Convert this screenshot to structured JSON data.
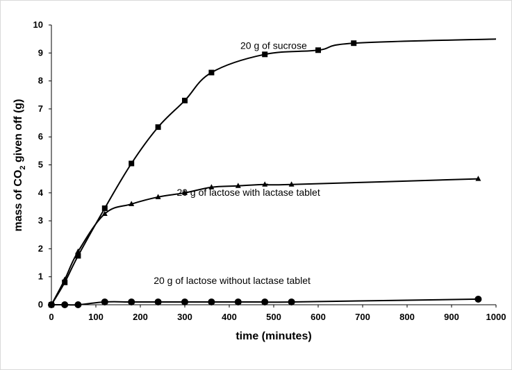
{
  "chart_data": {
    "type": "line",
    "title": "",
    "xlabel": "time (minutes)",
    "ylabel_parts": [
      "mass of CO",
      "2",
      " given off (g)"
    ],
    "xlim": [
      0,
      1000
    ],
    "ylim": [
      0,
      10
    ],
    "x_ticks": [
      0,
      100,
      200,
      300,
      400,
      500,
      600,
      700,
      800,
      900,
      1000
    ],
    "y_ticks": [
      0,
      1,
      2,
      3,
      4,
      5,
      6,
      7,
      8,
      9,
      10
    ],
    "grid": false,
    "legend": "none",
    "series": [
      {
        "name": "20 g of sucrose",
        "marker": "square",
        "label_at": [
          425,
          9.15
        ],
        "x": [
          0,
          30,
          60,
          120,
          180,
          240,
          300,
          360,
          480,
          600,
          680
        ],
        "y": [
          0,
          0.8,
          1.75,
          3.45,
          5.05,
          6.35,
          7.3,
          8.3,
          8.95,
          9.1,
          9.35
        ],
        "curve_x": [
          0,
          30,
          60,
          120,
          180,
          240,
          300,
          360,
          480,
          600,
          680,
          1000
        ],
        "curve_y": [
          0,
          0.8,
          1.75,
          3.45,
          5.05,
          6.35,
          7.3,
          8.3,
          8.95,
          9.1,
          9.35,
          9.5
        ]
      },
      {
        "name": "20 g of lactose with lactase tablet",
        "marker": "triangle",
        "label_at": [
          282,
          3.9
        ],
        "x": [
          0,
          30,
          60,
          120,
          180,
          240,
          300,
          360,
          420,
          480,
          540,
          960
        ],
        "y": [
          0,
          0.9,
          1.9,
          3.25,
          3.6,
          3.85,
          4.0,
          4.2,
          4.25,
          4.3,
          4.3,
          4.5
        ]
      },
      {
        "name": "20 g of lactose without lactase tablet",
        "marker": "circle",
        "label_at": [
          230,
          0.75
        ],
        "x": [
          0,
          30,
          60,
          120,
          180,
          240,
          300,
          360,
          420,
          480,
          540,
          960
        ],
        "y": [
          0,
          0,
          0,
          0.1,
          0.1,
          0.1,
          0.1,
          0.1,
          0.1,
          0.1,
          0.1,
          0.2
        ]
      }
    ]
  }
}
